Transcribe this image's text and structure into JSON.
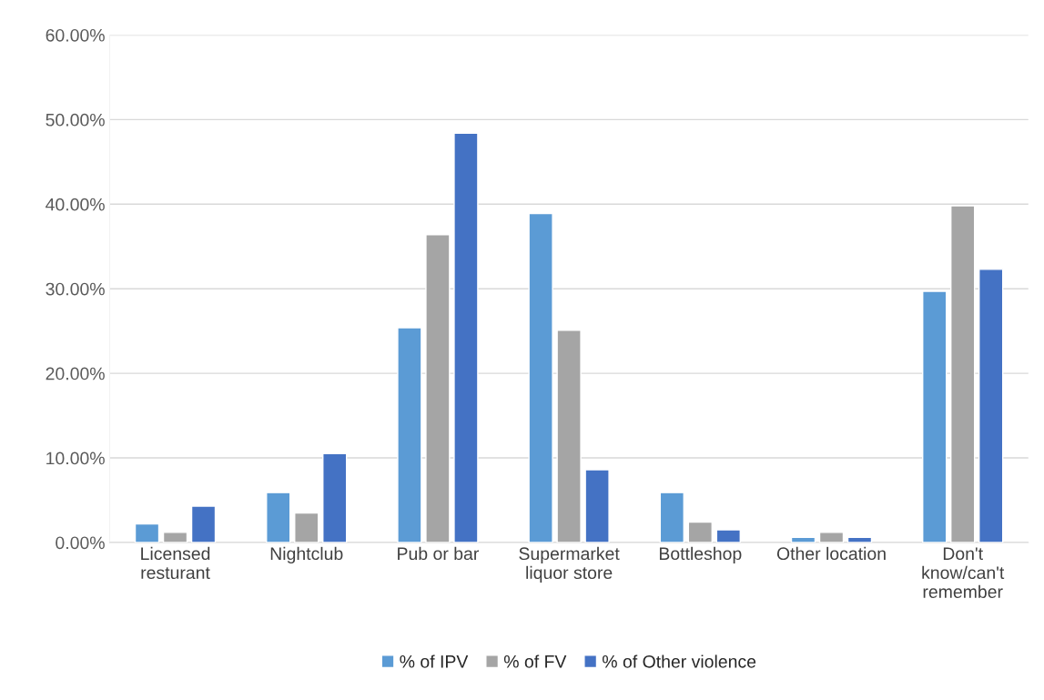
{
  "chart_data": {
    "type": "bar",
    "categories": [
      "Licensed\nresturant",
      "Nightclub",
      "Pub or bar",
      "Supermarket\nliquor store",
      "Bottleshop",
      "Other location",
      "Don't\nknow/can't\nremember"
    ],
    "series": [
      {
        "name": "% of IPV",
        "color": "#5b9bd5",
        "values": [
          2.2,
          5.9,
          25.4,
          38.9,
          5.9,
          0.6,
          29.7
        ]
      },
      {
        "name": "% of FV",
        "color": "#a5a5a5",
        "values": [
          1.2,
          3.5,
          36.4,
          25.1,
          2.4,
          1.2,
          39.8
        ]
      },
      {
        "name": "% of Other violence",
        "color": "#4472c4",
        "values": [
          4.3,
          10.5,
          48.4,
          8.6,
          1.5,
          0.6,
          32.3
        ]
      }
    ],
    "ylim": [
      0,
      60
    ],
    "yticks": [
      {
        "value": 0,
        "label": "0.00%"
      },
      {
        "value": 10,
        "label": "10.00%"
      },
      {
        "value": 20,
        "label": "20.00%"
      },
      {
        "value": 30,
        "label": "30.00%"
      },
      {
        "value": 40,
        "label": "40.00%"
      },
      {
        "value": 50,
        "label": "50.00%"
      },
      {
        "value": 60,
        "label": "60.00%"
      }
    ],
    "grid": "y",
    "legend": "bottom"
  }
}
